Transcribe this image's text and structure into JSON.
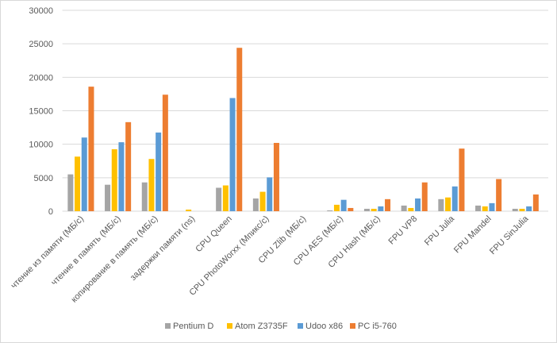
{
  "chart_data": {
    "type": "bar",
    "title": "",
    "xlabel": "",
    "ylabel": "",
    "ylim": [
      0,
      30000
    ],
    "yticks": [
      "0",
      "5000",
      "10000",
      "15000",
      "20000",
      "25000",
      "30000"
    ],
    "grid": true,
    "legend_position": "bottom",
    "categories": [
      "чтение из памяти (МБ/с)",
      "чтение в память (МБ/с)",
      "копирование в память (МБ/с)",
      "задержки памяти (ns)",
      "CPU Queen",
      "CPU PhotoWorxx (Мпикс/с)",
      "CPU Zlib (МБ/с)",
      "CPU AES (МБ/с)",
      "CPU Hash (МБ/с)",
      "FPU VP8",
      "FPU Julia",
      "FPU Mandel",
      "FPU SinJulia"
    ],
    "series": [
      {
        "name": "Pentium D",
        "color": "#A5A5A5",
        "values": [
          5500,
          3950,
          4300,
          0,
          3500,
          1900,
          0,
          120,
          360,
          840,
          1800,
          840,
          360
        ]
      },
      {
        "name": "Atom Z3735F",
        "color": "#FFC000",
        "values": [
          8150,
          9250,
          7800,
          240,
          3850,
          2900,
          0,
          960,
          360,
          480,
          2050,
          720,
          360
        ]
      },
      {
        "name": "Udoo x86",
        "color": "#5B9BD5",
        "values": [
          11000,
          10300,
          11750,
          0,
          16900,
          5050,
          0,
          1700,
          720,
          1900,
          3700,
          1200,
          720
        ]
      },
      {
        "name": "PC i5-760",
        "color": "#ED7D31",
        "values": [
          18600,
          13300,
          17400,
          0,
          24400,
          10200,
          0,
          480,
          1800,
          4300,
          9350,
          4800,
          2500
        ]
      }
    ]
  }
}
